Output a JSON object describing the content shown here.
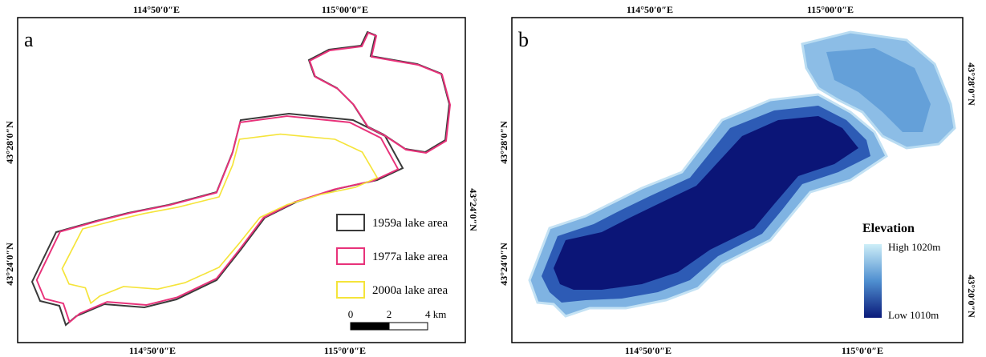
{
  "panels": [
    {
      "label": "a",
      "top_labels": [
        "114°50′0″E",
        "115°00′0″E"
      ],
      "bottom_labels": [
        "114°50′0″E",
        "115°0′0″E"
      ],
      "left_labels": [
        "43°28′0″N",
        "43°24′0″N"
      ],
      "right_labels": [
        "43°24′0″N"
      ],
      "legend": [
        {
          "label": "1959a lake area",
          "color": "#3a3a3a"
        },
        {
          "label": "1977a lake area",
          "color": "#e8327a"
        },
        {
          "label": "2000a lake area",
          "color": "#f5e43a"
        }
      ],
      "scale_bar": [
        "0",
        "2",
        "4 km"
      ]
    },
    {
      "label": "b",
      "top_labels": [
        "114°50′0″E",
        "115°00′0″E"
      ],
      "bottom_labels": [
        "114°50′0″E",
        "115°0′0″E"
      ],
      "left_labels": [
        "43°28′0″N",
        "43°24′0″N"
      ],
      "right_labels": [
        "43°28′0″N",
        "43°20′0″N"
      ],
      "legend_title": "Elevation",
      "legend_high": "High 1020m",
      "legend_low": "Low 1010m"
    }
  ]
}
